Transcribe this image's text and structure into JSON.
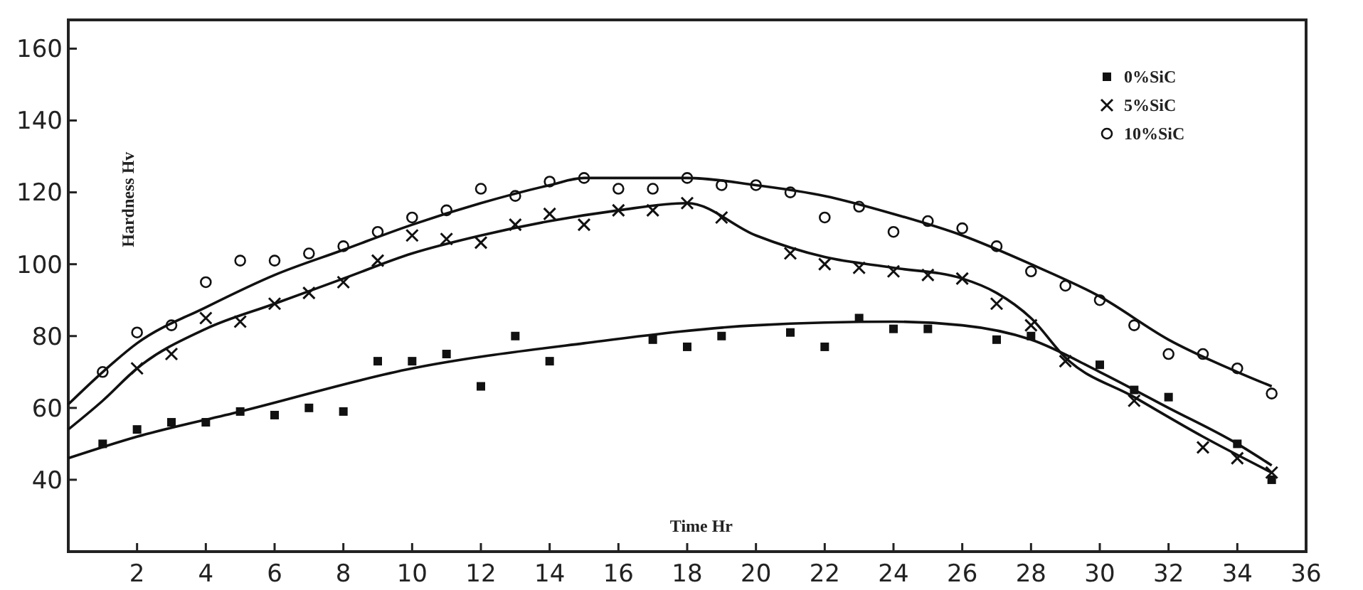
{
  "chart_data": {
    "type": "scatter",
    "xlabel": "Time Hr",
    "ylabel": "Hardness Hv",
    "xlim": [
      0,
      36
    ],
    "ylim": [
      20,
      168
    ],
    "xticks": [
      2,
      4,
      6,
      8,
      10,
      12,
      14,
      16,
      18,
      20,
      22,
      24,
      26,
      28,
      30,
      32,
      34,
      36
    ],
    "yticks": [
      40,
      60,
      80,
      100,
      120,
      140,
      160
    ],
    "grid": false,
    "legend": "top right",
    "series": [
      {
        "name": "0%SiC",
        "marker": "square",
        "color": "#111111",
        "x": [
          1,
          2,
          3,
          4,
          5,
          6,
          7,
          8,
          9,
          10,
          11,
          12,
          13,
          14,
          17,
          18,
          19,
          21,
          22,
          23,
          24,
          25,
          27,
          28,
          30,
          31,
          32,
          34,
          35
        ],
        "values": [
          50,
          54,
          56,
          56,
          59,
          58,
          60,
          59,
          73,
          73,
          75,
          66,
          80,
          73,
          79,
          77,
          80,
          81,
          77,
          85,
          82,
          82,
          79,
          80,
          72,
          65,
          63,
          50,
          40
        ]
      },
      {
        "name": "5%SiC",
        "marker": "cross",
        "color": "#111111",
        "x": [
          2,
          3,
          4,
          5,
          6,
          7,
          8,
          9,
          10,
          11,
          12,
          13,
          14,
          15,
          16,
          17,
          18,
          19,
          21,
          22,
          23,
          24,
          25,
          26,
          27,
          28,
          29,
          31,
          33,
          34,
          35
        ],
        "values": [
          71,
          75,
          85,
          84,
          89,
          92,
          95,
          101,
          108,
          107,
          106,
          111,
          114,
          111,
          115,
          115,
          117,
          113,
          103,
          100,
          99,
          98,
          97,
          96,
          89,
          83,
          73,
          62,
          49,
          46,
          42
        ]
      },
      {
        "name": "10%SiC",
        "marker": "circle",
        "color": "#111111",
        "x": [
          1,
          2,
          3,
          4,
          5,
          6,
          7,
          8,
          9,
          10,
          11,
          12,
          13,
          14,
          15,
          16,
          17,
          18,
          19,
          20,
          21,
          22,
          23,
          24,
          25,
          26,
          27,
          28,
          29,
          30,
          31,
          32,
          33,
          34,
          35
        ],
        "values": [
          70,
          81,
          83,
          95,
          101,
          101,
          103,
          105,
          109,
          113,
          115,
          121,
          119,
          123,
          124,
          121,
          121,
          124,
          122,
          122,
          120,
          113,
          116,
          109,
          112,
          110,
          105,
          98,
          94,
          90,
          83,
          75,
          75,
          71,
          64
        ]
      },
      {
        "type": "line",
        "marker": "none",
        "color": "#111111",
        "x": [
          0,
          2,
          5,
          10,
          15,
          20,
          24,
          26,
          28,
          30,
          32,
          34,
          35
        ],
        "values": [
          46,
          52,
          59,
          71,
          78,
          83,
          84,
          83,
          79,
          70,
          60,
          50,
          44
        ]
      },
      {
        "type": "line",
        "marker": "none",
        "color": "#111111",
        "x": [
          0,
          1,
          2,
          4,
          6,
          8,
          10,
          12,
          14,
          16,
          18,
          20,
          22,
          24,
          26,
          27,
          28,
          29,
          31,
          33,
          35
        ],
        "values": [
          54,
          62,
          71,
          82,
          89,
          96,
          103,
          108,
          112,
          115,
          117,
          108,
          102,
          99,
          96,
          92,
          85,
          74,
          63,
          52,
          42
        ]
      },
      {
        "type": "line",
        "marker": "none",
        "color": "#111111",
        "x": [
          0,
          1,
          2,
          4,
          6,
          8,
          10,
          12,
          14,
          15,
          18,
          20,
          22,
          24,
          26,
          28,
          30,
          32,
          34,
          35
        ],
        "values": [
          61,
          70,
          78,
          88,
          97,
          104,
          111,
          117,
          122,
          124,
          124,
          122,
          119,
          114,
          108,
          100,
          91,
          79,
          70,
          66
        ]
      }
    ]
  }
}
